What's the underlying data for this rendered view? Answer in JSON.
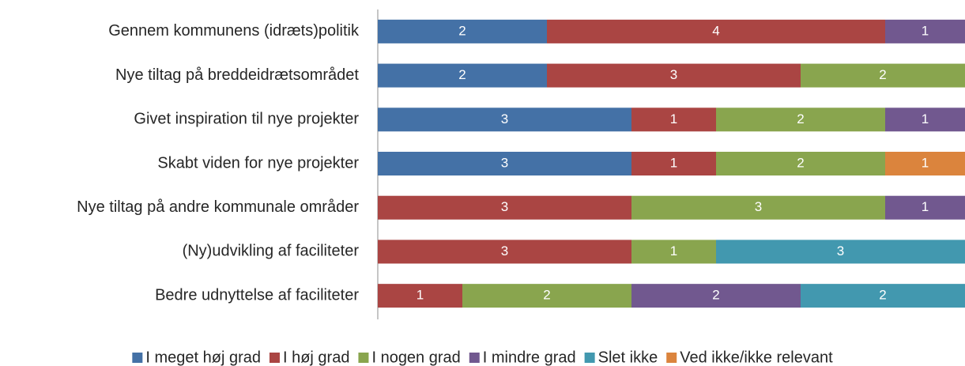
{
  "chart_data": {
    "type": "stacked-bar-horizontal",
    "categories": [
      "Gennem kommunens (idræts)politik",
      "Nye tiltag på breddeidrætsområdet",
      "Givet inspiration til nye projekter",
      "Skabt viden for nye projekter",
      "Nye tiltag på andre kommunale områder",
      "(Ny)udvikling af faciliteter",
      "Bedre udnyttelse af faciliteter"
    ],
    "series": [
      {
        "name": "I meget høj grad",
        "color": "#4471a6",
        "values": [
          2,
          2,
          3,
          3,
          null,
          null,
          null
        ]
      },
      {
        "name": "I høj grad",
        "color": "#aa4543",
        "values": [
          4,
          3,
          1,
          1,
          3,
          3,
          1
        ]
      },
      {
        "name": "I nogen grad",
        "color": "#89a54e",
        "values": [
          null,
          2,
          2,
          2,
          3,
          1,
          2
        ]
      },
      {
        "name": "I mindre grad",
        "color": "#71588f",
        "values": [
          1,
          null,
          1,
          null,
          1,
          null,
          2
        ]
      },
      {
        "name": "Slet ikke",
        "color": "#4298af",
        "values": [
          null,
          null,
          null,
          null,
          null,
          3,
          2
        ]
      },
      {
        "name": "Ved ikke/ikke relevant",
        "color": "#db843d",
        "values": [
          null,
          null,
          null,
          1,
          null,
          null,
          null
        ]
      }
    ],
    "xlim": [
      0,
      7
    ],
    "legend": "bottom"
  }
}
